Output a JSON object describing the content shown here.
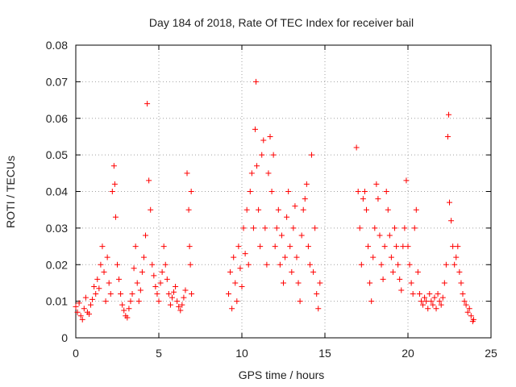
{
  "chart_data": {
    "type": "scatter",
    "title": "Day 184 of 2018, Rate Of TEC Index for receiver bail",
    "xlabel": "GPS time / hours",
    "ylabel": "ROTI / TECUs",
    "xlim": [
      0,
      25
    ],
    "ylim": [
      0,
      0.08
    ],
    "xticks": [
      0,
      5,
      10,
      15,
      20,
      25
    ],
    "xtick_labels": [
      "0",
      "5",
      "10",
      "15",
      "20",
      "25"
    ],
    "yticks": [
      0,
      0.01,
      0.02,
      0.03,
      0.04,
      0.05,
      0.06,
      0.07,
      0.08
    ],
    "ytick_labels": [
      "0",
      "0.01",
      "0.02",
      "0.03",
      "0.04",
      "0.05",
      "0.06",
      "0.07",
      "0.08"
    ],
    "grid": true,
    "marker": "+",
    "color": "#ff0000",
    "series": [
      {
        "name": "ROTI",
        "points": [
          [
            0.0,
            0.0085
          ],
          [
            0.1,
            0.007
          ],
          [
            0.2,
            0.0095
          ],
          [
            0.3,
            0.006
          ],
          [
            0.4,
            0.005
          ],
          [
            0.5,
            0.008
          ],
          [
            0.6,
            0.011
          ],
          [
            0.7,
            0.007
          ],
          [
            0.8,
            0.0065
          ],
          [
            0.9,
            0.009
          ],
          [
            1.0,
            0.0105
          ],
          [
            1.1,
            0.014
          ],
          [
            1.2,
            0.012
          ],
          [
            1.3,
            0.016
          ],
          [
            1.4,
            0.0135
          ],
          [
            1.5,
            0.02
          ],
          [
            1.6,
            0.025
          ],
          [
            1.7,
            0.018
          ],
          [
            1.8,
            0.01
          ],
          [
            1.9,
            0.022
          ],
          [
            2.0,
            0.015
          ],
          [
            2.1,
            0.012
          ],
          [
            2.2,
            0.04
          ],
          [
            2.3,
            0.047
          ],
          [
            2.35,
            0.042
          ],
          [
            2.4,
            0.033
          ],
          [
            2.5,
            0.02
          ],
          [
            2.6,
            0.016
          ],
          [
            2.7,
            0.012
          ],
          [
            2.8,
            0.009
          ],
          [
            2.9,
            0.0075
          ],
          [
            3.0,
            0.006
          ],
          [
            3.1,
            0.0055
          ],
          [
            3.2,
            0.008
          ],
          [
            3.3,
            0.01
          ],
          [
            3.4,
            0.012
          ],
          [
            3.5,
            0.019
          ],
          [
            3.6,
            0.025
          ],
          [
            3.7,
            0.015
          ],
          [
            3.8,
            0.01
          ],
          [
            3.9,
            0.013
          ],
          [
            4.0,
            0.018
          ],
          [
            4.1,
            0.022
          ],
          [
            4.2,
            0.028
          ],
          [
            4.3,
            0.064
          ],
          [
            4.4,
            0.043
          ],
          [
            4.5,
            0.035
          ],
          [
            4.6,
            0.02
          ],
          [
            4.7,
            0.017
          ],
          [
            4.8,
            0.014
          ],
          [
            4.9,
            0.012
          ],
          [
            5.0,
            0.01
          ],
          [
            5.1,
            0.015
          ],
          [
            5.2,
            0.018
          ],
          [
            5.3,
            0.025
          ],
          [
            5.4,
            0.02
          ],
          [
            5.5,
            0.016
          ],
          [
            5.6,
            0.012
          ],
          [
            5.7,
            0.009
          ],
          [
            5.8,
            0.011
          ],
          [
            5.9,
            0.0125
          ],
          [
            6.0,
            0.014
          ],
          [
            6.1,
            0.01
          ],
          [
            6.2,
            0.0085
          ],
          [
            6.3,
            0.0075
          ],
          [
            6.4,
            0.009
          ],
          [
            6.5,
            0.011
          ],
          [
            6.6,
            0.013
          ],
          [
            6.7,
            0.045
          ],
          [
            6.8,
            0.035
          ],
          [
            6.85,
            0.025
          ],
          [
            6.9,
            0.02
          ],
          [
            6.95,
            0.04
          ],
          [
            6.97,
            0.012
          ],
          [
            9.2,
            0.012
          ],
          [
            9.3,
            0.018
          ],
          [
            9.4,
            0.008
          ],
          [
            9.5,
            0.022
          ],
          [
            9.6,
            0.015
          ],
          [
            9.7,
            0.01
          ],
          [
            9.8,
            0.025
          ],
          [
            9.9,
            0.019
          ],
          [
            10.0,
            0.014
          ],
          [
            10.1,
            0.03
          ],
          [
            10.2,
            0.023
          ],
          [
            10.3,
            0.035
          ],
          [
            10.4,
            0.02
          ],
          [
            10.5,
            0.04
          ],
          [
            10.6,
            0.045
          ],
          [
            10.7,
            0.03
          ],
          [
            10.8,
            0.057
          ],
          [
            10.85,
            0.07
          ],
          [
            10.9,
            0.047
          ],
          [
            11.0,
            0.035
          ],
          [
            11.1,
            0.025
          ],
          [
            11.2,
            0.05
          ],
          [
            11.3,
            0.054
          ],
          [
            11.4,
            0.03
          ],
          [
            11.5,
            0.02
          ],
          [
            11.6,
            0.045
          ],
          [
            11.7,
            0.055
          ],
          [
            11.8,
            0.04
          ],
          [
            11.9,
            0.05
          ],
          [
            12.0,
            0.025
          ],
          [
            12.1,
            0.03
          ],
          [
            12.2,
            0.035
          ],
          [
            12.3,
            0.02
          ],
          [
            12.4,
            0.028
          ],
          [
            12.5,
            0.015
          ],
          [
            12.6,
            0.022
          ],
          [
            12.7,
            0.033
          ],
          [
            12.8,
            0.04
          ],
          [
            12.9,
            0.025
          ],
          [
            13.0,
            0.018
          ],
          [
            13.1,
            0.03
          ],
          [
            13.2,
            0.036
          ],
          [
            13.3,
            0.022
          ],
          [
            13.4,
            0.015
          ],
          [
            13.5,
            0.01
          ],
          [
            13.6,
            0.028
          ],
          [
            13.7,
            0.035
          ],
          [
            13.8,
            0.038
          ],
          [
            13.9,
            0.042
          ],
          [
            14.0,
            0.025
          ],
          [
            14.1,
            0.02
          ],
          [
            14.2,
            0.05
          ],
          [
            14.3,
            0.018
          ],
          [
            14.4,
            0.03
          ],
          [
            14.5,
            0.012
          ],
          [
            14.6,
            0.008
          ],
          [
            14.7,
            0.015
          ],
          [
            16.9,
            0.052
          ],
          [
            17.0,
            0.04
          ],
          [
            17.1,
            0.03
          ],
          [
            17.2,
            0.02
          ],
          [
            17.3,
            0.038
          ],
          [
            17.4,
            0.04
          ],
          [
            17.5,
            0.035
          ],
          [
            17.6,
            0.025
          ],
          [
            17.7,
            0.015
          ],
          [
            17.8,
            0.01
          ],
          [
            17.9,
            0.022
          ],
          [
            18.0,
            0.03
          ],
          [
            18.1,
            0.042
          ],
          [
            18.2,
            0.038
          ],
          [
            18.3,
            0.028
          ],
          [
            18.4,
            0.02
          ],
          [
            18.5,
            0.016
          ],
          [
            18.6,
            0.025
          ],
          [
            18.7,
            0.04
          ],
          [
            18.8,
            0.035
          ],
          [
            18.9,
            0.028
          ],
          [
            19.0,
            0.022
          ],
          [
            19.1,
            0.018
          ],
          [
            19.2,
            0.03
          ],
          [
            19.3,
            0.025
          ],
          [
            19.4,
            0.02
          ],
          [
            19.5,
            0.016
          ],
          [
            19.6,
            0.013
          ],
          [
            19.7,
            0.025
          ],
          [
            19.8,
            0.03
          ],
          [
            19.9,
            0.043
          ],
          [
            20.0,
            0.025
          ],
          [
            20.1,
            0.02
          ],
          [
            20.2,
            0.015
          ],
          [
            20.3,
            0.012
          ],
          [
            20.4,
            0.03
          ],
          [
            20.5,
            0.035
          ],
          [
            20.6,
            0.018
          ],
          [
            20.7,
            0.012
          ],
          [
            20.8,
            0.01
          ],
          [
            20.9,
            0.009
          ],
          [
            21.0,
            0.011
          ],
          [
            21.1,
            0.01
          ],
          [
            21.2,
            0.008
          ],
          [
            21.3,
            0.012
          ],
          [
            21.4,
            0.01
          ],
          [
            21.5,
            0.009
          ],
          [
            21.6,
            0.011
          ],
          [
            21.7,
            0.008
          ],
          [
            21.8,
            0.012
          ],
          [
            21.9,
            0.01
          ],
          [
            22.0,
            0.009
          ],
          [
            22.1,
            0.011
          ],
          [
            22.2,
            0.015
          ],
          [
            22.3,
            0.02
          ],
          [
            22.4,
            0.055
          ],
          [
            22.45,
            0.061
          ],
          [
            22.5,
            0.037
          ],
          [
            22.6,
            0.032
          ],
          [
            22.7,
            0.025
          ],
          [
            22.8,
            0.02
          ],
          [
            22.9,
            0.022
          ],
          [
            23.0,
            0.025
          ],
          [
            23.1,
            0.018
          ],
          [
            23.2,
            0.015
          ],
          [
            23.3,
            0.012
          ],
          [
            23.4,
            0.01
          ],
          [
            23.5,
            0.009
          ],
          [
            23.6,
            0.007
          ],
          [
            23.7,
            0.008
          ],
          [
            23.8,
            0.006
          ],
          [
            23.9,
            0.0045
          ],
          [
            23.95,
            0.005
          ]
        ]
      }
    ]
  }
}
